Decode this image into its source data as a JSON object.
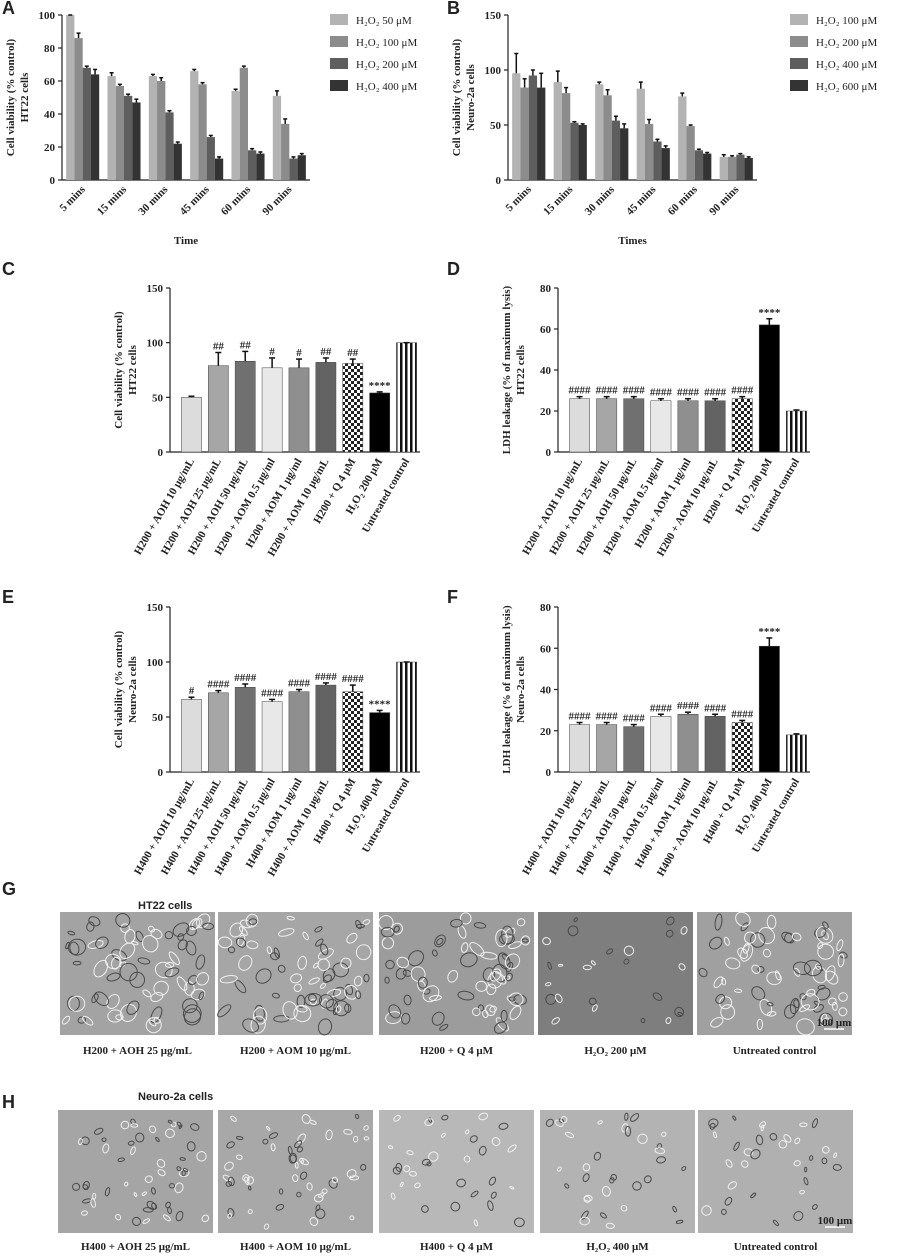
{
  "chart_data": [
    {
      "type": "bar",
      "label": "A",
      "y_label": [
        "Cell viability (% control)",
        "HT22 cells"
      ],
      "x_label": "Time",
      "categories": [
        "5 mins",
        "15 mins",
        "30 mins",
        "45 mins",
        "60 mins",
        "90 mins"
      ],
      "series": [
        {
          "name": "H₂O₂ 50 μM",
          "color": "#b3b3b3",
          "values": [
            100,
            63,
            63,
            66,
            54,
            51
          ],
          "errors": [
            0,
            2,
            1,
            1,
            1,
            3
          ]
        },
        {
          "name": "H₂O₂ 100 μM",
          "color": "#8c8c8c",
          "values": [
            86,
            57,
            60,
            58,
            68,
            34
          ],
          "errors": [
            3,
            1,
            2,
            1,
            1,
            3
          ]
        },
        {
          "name": "H₂O₂ 200 μM",
          "color": "#5e5e5e",
          "values": [
            68,
            51,
            41,
            26,
            18,
            13
          ],
          "errors": [
            1,
            1,
            1,
            1,
            1,
            1
          ]
        },
        {
          "name": "H₂O₂ 400 μM",
          "color": "#333333",
          "values": [
            64,
            47,
            22,
            13,
            16,
            15
          ],
          "errors": [
            3,
            2,
            1,
            1,
            1,
            1
          ]
        }
      ],
      "ylim": [
        0,
        100
      ],
      "yticks": [
        0,
        20,
        40,
        60,
        80,
        100
      ],
      "legend": "right"
    },
    {
      "type": "bar",
      "label": "B",
      "y_label": [
        "Cell viability (% control)",
        "Neuro-2a cells"
      ],
      "x_label": "Times",
      "categories": [
        "5 mins",
        "15 mins",
        "30 mins",
        "45 mins",
        "60 mins",
        "90 mins"
      ],
      "series": [
        {
          "name": "H₂O₂ 100 μM",
          "color": "#b3b3b3",
          "values": [
            97,
            89,
            87,
            83,
            76,
            21
          ],
          "errors": [
            18,
            10,
            2,
            6,
            3,
            2
          ]
        },
        {
          "name": "H₂O₂ 200 μM",
          "color": "#8c8c8c",
          "values": [
            84,
            79,
            77,
            51,
            49,
            21
          ],
          "errors": [
            8,
            5,
            5,
            4,
            1,
            1
          ]
        },
        {
          "name": "H₂O₂ 400 μM",
          "color": "#5e5e5e",
          "values": [
            95,
            52,
            54,
            35,
            27,
            23
          ],
          "errors": [
            5,
            1,
            4,
            2,
            1,
            1
          ]
        },
        {
          "name": "H₂O₂ 600 μM",
          "color": "#333333",
          "values": [
            84,
            50,
            47,
            29,
            24,
            20
          ],
          "errors": [
            13,
            1,
            4,
            2,
            1,
            1
          ]
        }
      ],
      "ylim": [
        0,
        150
      ],
      "yticks": [
        0,
        50,
        100,
        150
      ],
      "legend": "right"
    },
    {
      "type": "bar",
      "label": "C",
      "y_label": [
        "Cell viability (% control)",
        "HT22 cells"
      ],
      "categories": [
        "H200 + AOH 10 μg/mL",
        "H200 + AOH 25 μg/mL",
        "H200 + AOH 50 μg/mL",
        "H200 + AOM 0.5 μg/ml",
        "H200 + AOM 1 μg/ml",
        "H200 + AOM 10 μg/mL",
        "H200 + Q 4 μM",
        "H₂O₂ 200 μM",
        "Untreated control"
      ],
      "values": [
        50,
        79,
        83,
        77,
        77,
        82,
        81,
        54,
        100
      ],
      "errors": [
        1,
        12,
        9,
        9,
        8,
        4,
        4,
        1,
        0
      ],
      "annotations": [
        null,
        "##",
        "##",
        "#",
        "#",
        "##",
        "##",
        "****",
        null
      ],
      "colors": [
        "#dcdcdc",
        "#a6a6a6",
        "#707070",
        "#e8e8e8",
        "#8f8f8f",
        "#636363",
        "checker",
        "#000000",
        "stripes"
      ],
      "ylim": [
        0,
        150
      ],
      "yticks": [
        0,
        50,
        100,
        150
      ]
    },
    {
      "type": "bar",
      "label": "D",
      "y_label": [
        "LDH leakage (% of maximum lysis)",
        "HT22 cells"
      ],
      "categories": [
        "H200 + AOH 10 μg/mL",
        "H200 + AOH 25 μg/mL",
        "H200 + AOH 50 μg/mL",
        "H200 + AOM 0.5 μg/ml",
        "H200 + AOM 1 μg/ml",
        "H200 + AOM 10 μg/mL",
        "H200 + Q 4 μM",
        "H₂O₂ 200 μM",
        "Untreated control"
      ],
      "values": [
        26,
        26,
        26,
        25,
        25,
        25,
        26,
        62,
        20
      ],
      "errors": [
        1,
        1,
        1,
        1,
        1,
        1,
        1,
        3,
        0.5
      ],
      "annotations": [
        "####",
        "####",
        "####",
        "####",
        "####",
        "####",
        "####",
        "****",
        null
      ],
      "colors": [
        "#dcdcdc",
        "#a6a6a6",
        "#707070",
        "#e8e8e8",
        "#8f8f8f",
        "#636363",
        "checker",
        "#000000",
        "stripes"
      ],
      "ylim": [
        0,
        80
      ],
      "yticks": [
        0,
        20,
        40,
        60,
        80
      ]
    },
    {
      "type": "bar",
      "label": "E",
      "y_label": [
        "Cell viability (% control)",
        "Neuro-2a cells"
      ],
      "categories": [
        "H400 + AOH 10 μg/mL",
        "H400 + AOH 25 μg/mL",
        "H400 + AOH 50 μg/mL",
        "H400 + AOM 0.5 μg/ml",
        "H400 + AOM 1 μg/ml",
        "H400 + AOM 10 μg/mL",
        "H400 + Q 4 μM",
        "H₂O₂ 400 μM",
        "Untreated control"
      ],
      "values": [
        66,
        72,
        77,
        64,
        73,
        79,
        73,
        54,
        100
      ],
      "errors": [
        2,
        2,
        3,
        2,
        2,
        2,
        6,
        2,
        0
      ],
      "annotations": [
        "#",
        "####",
        "####",
        "####",
        "####",
        "####",
        "####",
        "****",
        null
      ],
      "colors": [
        "#dcdcdc",
        "#a6a6a6",
        "#707070",
        "#e8e8e8",
        "#8f8f8f",
        "#636363",
        "checker",
        "#000000",
        "stripes"
      ],
      "ylim": [
        0,
        150
      ],
      "yticks": [
        0,
        50,
        100,
        150
      ]
    },
    {
      "type": "bar",
      "label": "F",
      "y_label": [
        "LDH leakage (% of maximum lysis)",
        "Neuro-2a cells"
      ],
      "categories": [
        "H400 + AOH 10 μg/mL",
        "H400 + AOH 25 μg/mL",
        "H400 + AOH 50 μg/mL",
        "H400 + AOM 0.5 μg/ml",
        "H400 + AOM 1 μg/ml",
        "H400 + AOM 10 μg/mL",
        "H400 + Q 4 μM",
        "H₂O₂ 400 μM",
        "Untreated control"
      ],
      "values": [
        23,
        23,
        22,
        27,
        28,
        27,
        24,
        61,
        18
      ],
      "errors": [
        1,
        1,
        1,
        1,
        1,
        1,
        1,
        4,
        0.5
      ],
      "annotations": [
        "####",
        "####",
        "####",
        "####",
        "####",
        "####",
        "####",
        "****",
        null
      ],
      "colors": [
        "#dcdcdc",
        "#a6a6a6",
        "#707070",
        "#e8e8e8",
        "#8f8f8f",
        "#636363",
        "checker",
        "#000000",
        "stripes"
      ],
      "ylim": [
        0,
        80
      ],
      "yticks": [
        0,
        20,
        40,
        60,
        80
      ]
    }
  ],
  "micrographs": [
    {
      "label": "G",
      "title": "HT22 cells",
      "captions": [
        "H200 + AOH 25 μg/mL",
        "H200 + AOM 10 μg/mL",
        "H200 + Q 4 μM",
        "H₂O₂ 200 μM",
        "Untreated control"
      ],
      "scale_bar": "100 μm"
    },
    {
      "label": "H",
      "title": "Neuro-2a cells",
      "captions": [
        "H400 + AOH 25 μg/mL",
        "H400 + AOM 10 μg/mL",
        "H400 + Q 4 μM",
        "H₂O₂ 400 μM",
        "Untreated control"
      ],
      "scale_bar": "100 μm"
    }
  ]
}
